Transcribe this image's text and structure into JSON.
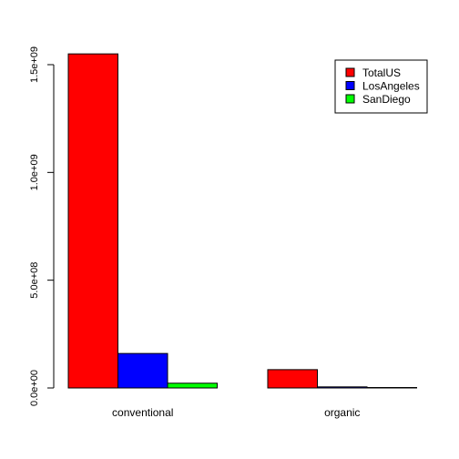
{
  "chart_data": {
    "type": "bar",
    "title": "",
    "xlabel": "",
    "ylabel": "",
    "categories": [
      "conventional",
      "organic"
    ],
    "series": [
      {
        "name": "TotalUS",
        "color": "#ff0000",
        "values": [
          1550000000,
          85000000
        ]
      },
      {
        "name": "LosAngeles",
        "color": "#0000ff",
        "values": [
          160000000,
          5000000
        ]
      },
      {
        "name": "SanDiego",
        "color": "#00ff00",
        "values": [
          22000000,
          1000000
        ]
      }
    ],
    "ylim": [
      0,
      1600000000
    ],
    "yticks": [
      0,
      500000000,
      1000000000,
      1500000000
    ],
    "ytick_labels": [
      "0.0e+00",
      "5.0e+08",
      "1.0e+09",
      "1.5e+09"
    ],
    "legend": {
      "position": "top-right",
      "entries": [
        "TotalUS",
        "LosAngeles",
        "SanDiego"
      ]
    },
    "grid": false
  }
}
